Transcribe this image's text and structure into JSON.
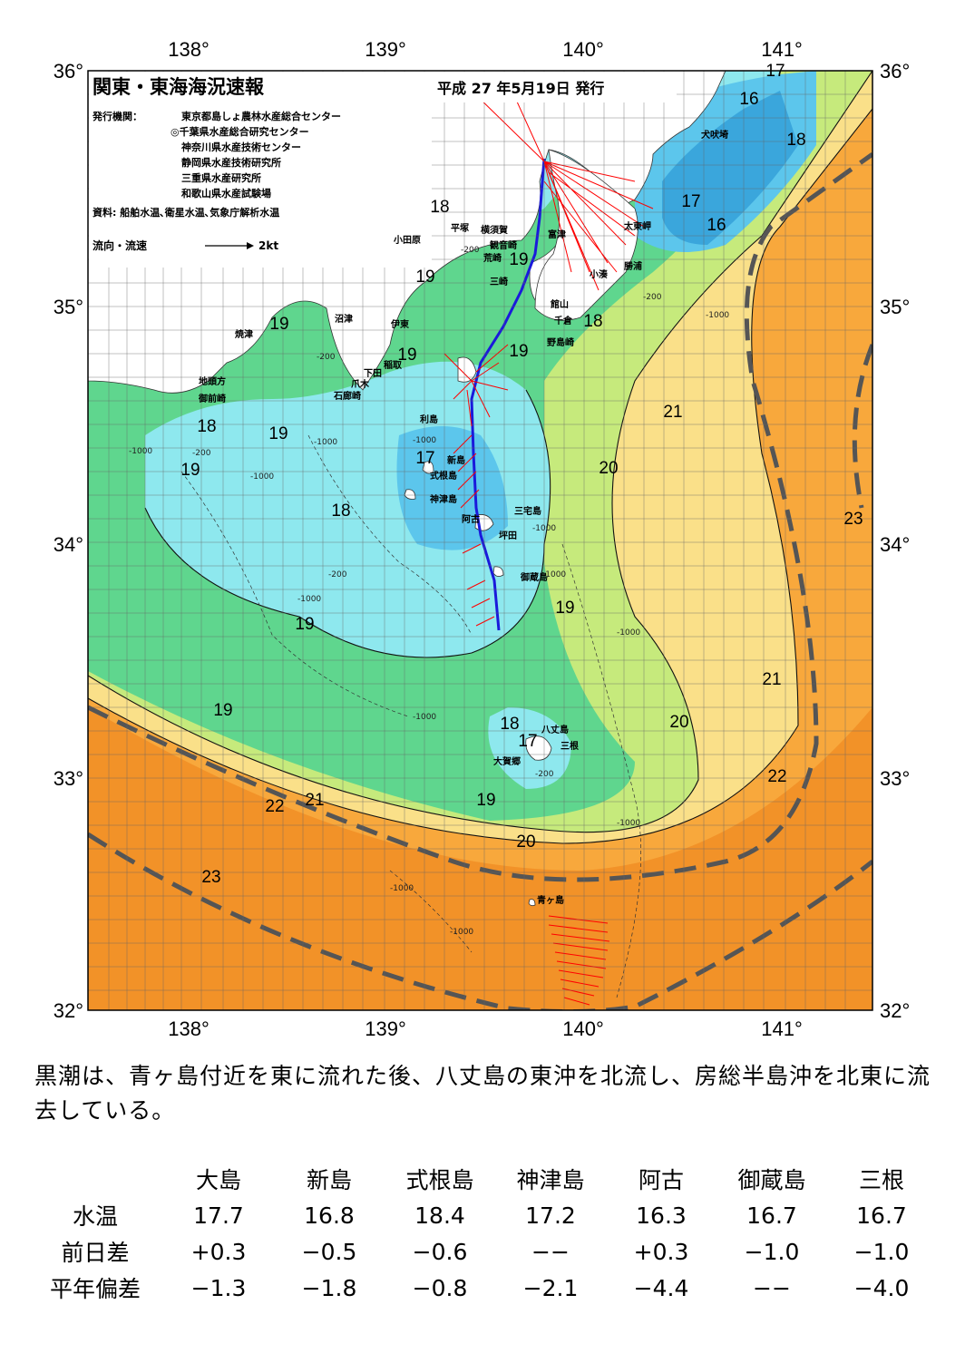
{
  "header": {
    "title": "関東・東海海況速報",
    "issue_date": "平成 27 年5月19日 発行",
    "publisher_label": "発行機関：",
    "publishers": [
      "東京都島しょ農林水産総合センター",
      "◎千葉県水産総合研究センター",
      "神奈川県水産技術センター",
      "静岡県水産技術研究所",
      "三重県水産研究所",
      "和歌山県水産試験場"
    ],
    "sources": "資料: 船舶水温､衛星水温､気象庁解析水温",
    "current_legend_label": "流向・流速",
    "current_legend_value": "2kt"
  },
  "axes": {
    "lon_labels": [
      "138°",
      "139°",
      "140°",
      "141°"
    ],
    "lat_labels": [
      "36°",
      "35°",
      "34°",
      "33°",
      "32°"
    ]
  },
  "map": {
    "isotherm_labels": [
      "17",
      "16",
      "18",
      "17",
      "16",
      "18",
      "19",
      "19",
      "19",
      "19",
      "19",
      "18",
      "18",
      "19",
      "19",
      "17",
      "18",
      "21",
      "20",
      "23",
      "19",
      "19",
      "21",
      "19",
      "18",
      "17",
      "20",
      "21",
      "22",
      "22",
      "19",
      "20",
      "23"
    ],
    "place_names": [
      "犬吠埼",
      "太東岬",
      "勝浦",
      "小湊",
      "館山",
      "千倉",
      "野島崎",
      "富津",
      "観音崎",
      "横須賀",
      "三崎",
      "荒崎",
      "平塚",
      "小田原",
      "伊東",
      "沼津",
      "焼津",
      "稲取",
      "下田",
      "爪木",
      "石廊崎",
      "地頭方",
      "御前崎",
      "利島",
      "新島",
      "式根島",
      "神津島",
      "阿古",
      "三宅島",
      "坪田",
      "御蔵島",
      "八丈島",
      "三根",
      "大賀郷",
      "青ヶ島"
    ],
    "depth_labels": [
      "-200",
      "-200",
      "-1000",
      "-200",
      "-1000",
      "-200",
      "-1000",
      "-1000",
      "-200",
      "-1000",
      "-1000",
      "-1000",
      "-1000",
      "-1000",
      "-1000",
      "-1000",
      "-200",
      "-1000",
      "-1000"
    ],
    "colors": {
      "t16": "#3aa6dc",
      "t17": "#5cc6ec",
      "t18": "#8ee8ee",
      "t19": "#5fd68e",
      "t20": "#c6ea7c",
      "t21": "#fae089",
      "t22": "#f8a83c",
      "t23": "#f29228",
      "land": "#ffffff",
      "kuroshio_axis": "#555555",
      "ship_track": "#1a1adb",
      "current_vector": "#ff0000"
    }
  },
  "summary": "黒潮は、青ヶ島付近を東に流れた後、八丈島の東沖を北流し、房総半島沖を北東に流去している。",
  "table": {
    "columns": [
      "大島",
      "新島",
      "式根島",
      "神津島",
      "阿古",
      "御蔵島",
      "三根"
    ],
    "rows": [
      {
        "label": "水温",
        "values": [
          "17.7",
          "16.8",
          "18.4",
          "17.2",
          "16.3",
          "16.7",
          "16.7"
        ]
      },
      {
        "label": "前日差",
        "values": [
          "+0.3",
          "−0.5",
          "−0.6",
          "−−",
          "+0.3",
          "−1.0",
          "−1.0"
        ]
      },
      {
        "label": "平年偏差",
        "values": [
          "−1.3",
          "−1.8",
          "−0.8",
          "−2.1",
          "−4.4",
          "−−",
          "−4.0"
        ]
      }
    ]
  }
}
